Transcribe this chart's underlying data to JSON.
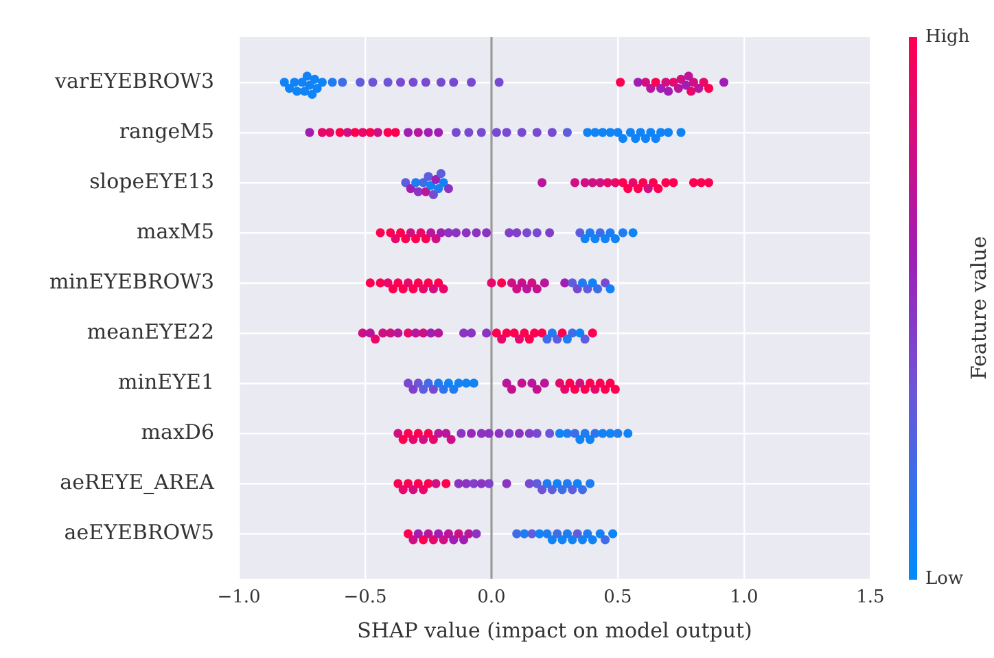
{
  "chart_data": {
    "type": "scatter",
    "orientation": "horizontal",
    "xlabel": "SHAP value (impact on model output)",
    "clabel": "Feature value",
    "categories": [
      "varEYEBROW3",
      "rangeM5",
      "slopeEYE13",
      "maxM5",
      "minEYEBROW3",
      "meanEYE22",
      "minEYE1",
      "maxD6",
      "aeREYE_AREA",
      "aeEYEBROW5"
    ],
    "xlim": [
      -1.0,
      1.5
    ],
    "xticks": [
      {
        "value": -1.0,
        "label": "−1.0"
      },
      {
        "value": -0.5,
        "label": "−0.5"
      },
      {
        "value": 0,
        "label": "0.0"
      },
      {
        "value": 0.5,
        "label": "0.5"
      },
      {
        "value": 1.0,
        "label": "1.0"
      },
      {
        "value": 1.5,
        "label": "1.5"
      }
    ],
    "clim": [
      0,
      1
    ],
    "cticks": [
      {
        "value": 0,
        "label": "Low"
      },
      {
        "value": 1,
        "label": "High"
      }
    ],
    "grid": true,
    "legend": false,
    "marker": "circle",
    "ref_lines": [
      {
        "axis": "x",
        "value": 0,
        "color": "#999999"
      }
    ],
    "series": [
      {
        "x": [
          "varEYEBROW3",
          "varEYEBROW3",
          "varEYEBROW3",
          "varEYEBROW3",
          "varEYEBROW3",
          "varEYEBROW3",
          "varEYEBROW3",
          "varEYEBROW3",
          "varEYEBROW3",
          "varEYEBROW3",
          "varEYEBROW3",
          "varEYEBROW3",
          "varEYEBROW3",
          "varEYEBROW3",
          "varEYEBROW3",
          "varEYEBROW3",
          "varEYEBROW3",
          "varEYEBROW3",
          "varEYEBROW3",
          "varEYEBROW3",
          "varEYEBROW3",
          "varEYEBROW3",
          "varEYEBROW3",
          "varEYEBROW3",
          "varEYEBROW3",
          "varEYEBROW3",
          "varEYEBROW3",
          "varEYEBROW3",
          "varEYEBROW3",
          "varEYEBROW3",
          "varEYEBROW3",
          "varEYEBROW3",
          "varEYEBROW3",
          "varEYEBROW3",
          "varEYEBROW3",
          "varEYEBROW3",
          "varEYEBROW3",
          "varEYEBROW3",
          "varEYEBROW3",
          "varEYEBROW3",
          "varEYEBROW3",
          "varEYEBROW3",
          "varEYEBROW3"
        ],
        "values": [
          -0.82,
          -0.8,
          -0.78,
          -0.77,
          -0.75,
          -0.74,
          -0.73,
          -0.72,
          -0.71,
          -0.7,
          -0.69,
          -0.67,
          -0.63,
          -0.59,
          -0.52,
          -0.47,
          -0.41,
          -0.36,
          -0.31,
          -0.26,
          -0.2,
          -0.15,
          -0.08,
          0.03,
          0.51,
          0.58,
          0.61,
          0.63,
          0.65,
          0.67,
          0.69,
          0.7,
          0.72,
          0.74,
          0.75,
          0.77,
          0.78,
          0.79,
          0.8,
          0.82,
          0.84,
          0.86,
          0.92
        ],
        "colors": [
          "#1083f6",
          "#1083f6",
          "#1083f6",
          "#1083f6",
          "#1083f6",
          "#1083f6",
          "#1083f6",
          "#1083f6",
          "#1083f6",
          "#1083f6",
          "#1083f6",
          "#1083f6",
          "#1f7cf1",
          "#3f6ce7",
          "#5e5ddd",
          "#6e55d8",
          "#6e55d8",
          "#784ad1",
          "#784ad1",
          "#784ad1",
          "#784ad1",
          "#784ad1",
          "#784ad1",
          "#784ad1",
          "#ff0051",
          "#a11db4",
          "#d00f83",
          "#b9169b",
          "#ff0051",
          "#a11db4",
          "#d00f83",
          "#a11db4",
          "#e8076a",
          "#b9169b",
          "#d00f83",
          "#a11db4",
          "#b9169b",
          "#e8076a",
          "#d00f83",
          "#b9169b",
          "#e8076a",
          "#ff0051",
          "#a11db4"
        ]
      },
      {
        "x": [
          "rangeM5",
          "rangeM5",
          "rangeM5",
          "rangeM5",
          "rangeM5",
          "rangeM5",
          "rangeM5",
          "rangeM5",
          "rangeM5",
          "rangeM5",
          "rangeM5",
          "rangeM5",
          "rangeM5",
          "rangeM5",
          "rangeM5",
          "rangeM5",
          "rangeM5",
          "rangeM5",
          "rangeM5",
          "rangeM5",
          "rangeM5",
          "rangeM5",
          "rangeM5",
          "rangeM5",
          "rangeM5",
          "rangeM5",
          "rangeM5",
          "rangeM5",
          "rangeM5",
          "rangeM5",
          "rangeM5",
          "rangeM5",
          "rangeM5",
          "rangeM5",
          "rangeM5",
          "rangeM5",
          "rangeM5",
          "rangeM5",
          "rangeM5"
        ],
        "values": [
          -0.72,
          -0.67,
          -0.64,
          -0.6,
          -0.57,
          -0.54,
          -0.51,
          -0.48,
          -0.45,
          -0.41,
          -0.38,
          -0.33,
          -0.29,
          -0.25,
          -0.21,
          -0.14,
          -0.09,
          -0.04,
          0.02,
          0.06,
          0.12,
          0.18,
          0.24,
          0.3,
          0.38,
          0.41,
          0.44,
          0.47,
          0.5,
          0.52,
          0.55,
          0.57,
          0.59,
          0.61,
          0.63,
          0.65,
          0.67,
          0.7,
          0.75
        ],
        "colors": [
          "#a11db4",
          "#e8076a",
          "#e8076a",
          "#ff0051",
          "#d00f83",
          "#ff0051",
          "#e8076a",
          "#ff0051",
          "#d00f83",
          "#ff0051",
          "#ff0051",
          "#a11db4",
          "#b9169b",
          "#a11db4",
          "#a11db4",
          "#784ad1",
          "#784ad1",
          "#784ad1",
          "#784ad1",
          "#784ad1",
          "#784ad1",
          "#784ad1",
          "#784ad1",
          "#5e5ddd",
          "#1083f6",
          "#1083f6",
          "#1083f6",
          "#1083f6",
          "#1083f6",
          "#1083f6",
          "#1083f6",
          "#1083f6",
          "#1083f6",
          "#1083f6",
          "#1083f6",
          "#1083f6",
          "#1083f6",
          "#1083f6",
          "#1083f6"
        ]
      },
      {
        "x": [
          "slopeEYE13",
          "slopeEYE13",
          "slopeEYE13",
          "slopeEYE13",
          "slopeEYE13",
          "slopeEYE13",
          "slopeEYE13",
          "slopeEYE13",
          "slopeEYE13",
          "slopeEYE13",
          "slopeEYE13",
          "slopeEYE13",
          "slopeEYE13",
          "slopeEYE13",
          "slopeEYE13",
          "slopeEYE13",
          "slopeEYE13",
          "slopeEYE13",
          "slopeEYE13",
          "slopeEYE13",
          "slopeEYE13",
          "slopeEYE13",
          "slopeEYE13",
          "slopeEYE13",
          "slopeEYE13",
          "slopeEYE13",
          "slopeEYE13",
          "slopeEYE13",
          "slopeEYE13",
          "slopeEYE13",
          "slopeEYE13",
          "slopeEYE13",
          "slopeEYE13",
          "slopeEYE13"
        ],
        "values": [
          -0.34,
          -0.32,
          -0.3,
          -0.29,
          -0.27,
          -0.26,
          -0.25,
          -0.24,
          -0.23,
          -0.22,
          -0.21,
          -0.2,
          -0.19,
          -0.17,
          0.2,
          0.33,
          0.37,
          0.4,
          0.43,
          0.46,
          0.49,
          0.52,
          0.54,
          0.56,
          0.58,
          0.6,
          0.62,
          0.64,
          0.66,
          0.69,
          0.72,
          0.8,
          0.83,
          0.86
        ],
        "colors": [
          "#5e5ddd",
          "#a11db4",
          "#1f7cf1",
          "#8d33c2",
          "#3f6ce7",
          "#b9169b",
          "#5e5ddd",
          "#1083f6",
          "#784ad1",
          "#a11db4",
          "#1f7cf1",
          "#5e5ddd",
          "#1083f6",
          "#8d33c2",
          "#b9169b",
          "#d00f83",
          "#d00f83",
          "#d00f83",
          "#d00f83",
          "#e8076a",
          "#e8076a",
          "#ff0051",
          "#ff0051",
          "#e8076a",
          "#ff0051",
          "#ff0051",
          "#d00f83",
          "#ff0051",
          "#ff0051",
          "#ff0051",
          "#ff0051",
          "#ff0051",
          "#ff0051",
          "#ff0051"
        ]
      },
      {
        "x": [
          "maxM5",
          "maxM5",
          "maxM5",
          "maxM5",
          "maxM5",
          "maxM5",
          "maxM5",
          "maxM5",
          "maxM5",
          "maxM5",
          "maxM5",
          "maxM5",
          "maxM5",
          "maxM5",
          "maxM5",
          "maxM5",
          "maxM5",
          "maxM5",
          "maxM5",
          "maxM5",
          "maxM5",
          "maxM5",
          "maxM5",
          "maxM5",
          "maxM5",
          "maxM5",
          "maxM5",
          "maxM5",
          "maxM5",
          "maxM5",
          "maxM5",
          "maxM5"
        ],
        "values": [
          -0.44,
          -0.4,
          -0.38,
          -0.36,
          -0.34,
          -0.32,
          -0.3,
          -0.28,
          -0.26,
          -0.24,
          -0.22,
          -0.2,
          -0.17,
          -0.14,
          -0.1,
          -0.06,
          -0.02,
          0.07,
          0.1,
          0.14,
          0.18,
          0.23,
          0.35,
          0.37,
          0.39,
          0.41,
          0.43,
          0.45,
          0.47,
          0.49,
          0.52,
          0.56
        ],
        "colors": [
          "#ff0051",
          "#ff0051",
          "#e8076a",
          "#ff0051",
          "#ff0051",
          "#d00f83",
          "#ff0051",
          "#e8076a",
          "#ff0051",
          "#b9169b",
          "#d00f83",
          "#a11db4",
          "#8d33c2",
          "#8d33c2",
          "#8d33c2",
          "#8d33c2",
          "#8d33c2",
          "#823fca",
          "#823fca",
          "#784ad1",
          "#784ad1",
          "#823fca",
          "#5e5ddd",
          "#1083f6",
          "#1f7cf1",
          "#1083f6",
          "#3f6ce7",
          "#1083f6",
          "#1f7cf1",
          "#1083f6",
          "#1f7cf1",
          "#1083f6"
        ]
      },
      {
        "x": [
          "minEYEBROW3",
          "minEYEBROW3",
          "minEYEBROW3",
          "minEYEBROW3",
          "minEYEBROW3",
          "minEYEBROW3",
          "minEYEBROW3",
          "minEYEBROW3",
          "minEYEBROW3",
          "minEYEBROW3",
          "minEYEBROW3",
          "minEYEBROW3",
          "minEYEBROW3",
          "minEYEBROW3",
          "minEYEBROW3",
          "minEYEBROW3",
          "minEYEBROW3",
          "minEYEBROW3",
          "minEYEBROW3",
          "minEYEBROW3",
          "minEYEBROW3",
          "minEYEBROW3",
          "minEYEBROW3",
          "minEYEBROW3",
          "minEYEBROW3",
          "minEYEBROW3",
          "minEYEBROW3",
          "minEYEBROW3",
          "minEYEBROW3",
          "minEYEBROW3",
          "minEYEBROW3",
          "minEYEBROW3"
        ],
        "values": [
          -0.48,
          -0.44,
          -0.41,
          -0.39,
          -0.37,
          -0.35,
          -0.33,
          -0.31,
          -0.29,
          -0.27,
          -0.25,
          -0.23,
          -0.21,
          -0.19,
          0.0,
          0.04,
          0.08,
          0.1,
          0.12,
          0.14,
          0.16,
          0.18,
          0.21,
          0.29,
          0.32,
          0.34,
          0.36,
          0.38,
          0.4,
          0.42,
          0.45,
          0.47
        ],
        "colors": [
          "#ff0051",
          "#ff0051",
          "#e8076a",
          "#ff0051",
          "#ff0051",
          "#ff0051",
          "#e8076a",
          "#ff0051",
          "#ff0051",
          "#e8076a",
          "#ff0051",
          "#d00f83",
          "#ff0051",
          "#e8076a",
          "#e8076a",
          "#ff0051",
          "#d00f83",
          "#d00f83",
          "#c4128f",
          "#b9169b",
          "#d00f83",
          "#c4128f",
          "#b9169b",
          "#a11db4",
          "#5e5ddd",
          "#784ad1",
          "#1f7cf1",
          "#5e5ddd",
          "#1083f6",
          "#3f6ce7",
          "#784ad1",
          "#1083f6"
        ]
      },
      {
        "x": [
          "meanEYE22",
          "meanEYE22",
          "meanEYE22",
          "meanEYE22",
          "meanEYE22",
          "meanEYE22",
          "meanEYE22",
          "meanEYE22",
          "meanEYE22",
          "meanEYE22",
          "meanEYE22",
          "meanEYE22",
          "meanEYE22",
          "meanEYE22",
          "meanEYE22",
          "meanEYE22",
          "meanEYE22",
          "meanEYE22",
          "meanEYE22",
          "meanEYE22",
          "meanEYE22",
          "meanEYE22",
          "meanEYE22",
          "meanEYE22",
          "meanEYE22",
          "meanEYE22",
          "meanEYE22",
          "meanEYE22",
          "meanEYE22",
          "meanEYE22",
          "meanEYE22",
          "meanEYE22"
        ],
        "values": [
          -0.51,
          -0.48,
          -0.46,
          -0.43,
          -0.4,
          -0.37,
          -0.33,
          -0.3,
          -0.27,
          -0.24,
          -0.21,
          -0.11,
          -0.08,
          -0.02,
          0.02,
          0.04,
          0.06,
          0.09,
          0.11,
          0.13,
          0.15,
          0.17,
          0.2,
          0.22,
          0.24,
          0.26,
          0.28,
          0.3,
          0.32,
          0.35,
          0.37,
          0.4
        ],
        "colors": [
          "#d00f83",
          "#b9169b",
          "#e8076a",
          "#d00f83",
          "#d00f83",
          "#b9169b",
          "#e8076a",
          "#b9169b",
          "#d00f83",
          "#a11db4",
          "#b9169b",
          "#8d33c2",
          "#8d33c2",
          "#8d33c2",
          "#ff0051",
          "#e8076a",
          "#ff0051",
          "#ff0051",
          "#e8076a",
          "#ff0051",
          "#ff0051",
          "#ff0051",
          "#ff0051",
          "#3f6ce7",
          "#1f7cf1",
          "#5e5ddd",
          "#ff0051",
          "#1f7cf1",
          "#3f6ce7",
          "#1083f6",
          "#5e5ddd",
          "#ff0051"
        ]
      },
      {
        "x": [
          "minEYE1",
          "minEYE1",
          "minEYE1",
          "minEYE1",
          "minEYE1",
          "minEYE1",
          "minEYE1",
          "minEYE1",
          "minEYE1",
          "minEYE1",
          "minEYE1",
          "minEYE1",
          "minEYE1",
          "minEYE1",
          "minEYE1",
          "minEYE1",
          "minEYE1",
          "minEYE1",
          "minEYE1",
          "minEYE1",
          "minEYE1",
          "minEYE1",
          "minEYE1",
          "minEYE1",
          "minEYE1",
          "minEYE1",
          "minEYE1",
          "minEYE1",
          "minEYE1",
          "minEYE1",
          "minEYE1"
        ],
        "values": [
          -0.33,
          -0.31,
          -0.29,
          -0.27,
          -0.25,
          -0.23,
          -0.21,
          -0.19,
          -0.17,
          -0.15,
          -0.13,
          -0.1,
          -0.07,
          0.06,
          0.08,
          0.12,
          0.16,
          0.18,
          0.21,
          0.27,
          0.29,
          0.31,
          0.33,
          0.35,
          0.37,
          0.39,
          0.41,
          0.43,
          0.45,
          0.47,
          0.49
        ],
        "colors": [
          "#784ad1",
          "#823fca",
          "#6e55d8",
          "#5e5ddd",
          "#3f6ce7",
          "#784ad1",
          "#1f7cf1",
          "#2f74ec",
          "#1083f6",
          "#1f7cf1",
          "#1083f6",
          "#1083f6",
          "#1083f6",
          "#b9169b",
          "#c4128f",
          "#c4128f",
          "#b9169b",
          "#c4128f",
          "#b9169b",
          "#e8076a",
          "#e8076a",
          "#ff0051",
          "#ff0051",
          "#d00f83",
          "#ff0051",
          "#ff0051",
          "#e8076a",
          "#ff0051",
          "#ff0051",
          "#ff0051",
          "#ff0051"
        ]
      },
      {
        "x": [
          "maxD6",
          "maxD6",
          "maxD6",
          "maxD6",
          "maxD6",
          "maxD6",
          "maxD6",
          "maxD6",
          "maxD6",
          "maxD6",
          "maxD6",
          "maxD6",
          "maxD6",
          "maxD6",
          "maxD6",
          "maxD6",
          "maxD6",
          "maxD6",
          "maxD6",
          "maxD6",
          "maxD6",
          "maxD6",
          "maxD6",
          "maxD6",
          "maxD6",
          "maxD6",
          "maxD6",
          "maxD6",
          "maxD6",
          "maxD6",
          "maxD6",
          "maxD6"
        ],
        "values": [
          -0.37,
          -0.35,
          -0.33,
          -0.31,
          -0.29,
          -0.27,
          -0.25,
          -0.23,
          -0.21,
          -0.18,
          -0.16,
          -0.12,
          -0.08,
          -0.04,
          -0.01,
          0.03,
          0.07,
          0.11,
          0.15,
          0.18,
          0.23,
          0.27,
          0.3,
          0.33,
          0.35,
          0.37,
          0.39,
          0.41,
          0.44,
          0.47,
          0.5,
          0.54
        ],
        "colors": [
          "#d00f83",
          "#ff0051",
          "#ff0051",
          "#e8076a",
          "#ff0051",
          "#d00f83",
          "#ff0051",
          "#e8076a",
          "#b9169b",
          "#b9169b",
          "#d00f83",
          "#8d33c2",
          "#9728bb",
          "#8d33c2",
          "#8d33c2",
          "#8d33c2",
          "#823fca",
          "#8d33c2",
          "#823fca",
          "#784ad1",
          "#6e55d8",
          "#1083f6",
          "#1f7cf1",
          "#3f6ce7",
          "#1083f6",
          "#1f7cf1",
          "#1083f6",
          "#2f74ec",
          "#1083f6",
          "#1083f6",
          "#1f7cf1",
          "#1083f6"
        ]
      },
      {
        "x": [
          "aeREYE_AREA",
          "aeREYE_AREA",
          "aeREYE_AREA",
          "aeREYE_AREA",
          "aeREYE_AREA",
          "aeREYE_AREA",
          "aeREYE_AREA",
          "aeREYE_AREA",
          "aeREYE_AREA",
          "aeREYE_AREA",
          "aeREYE_AREA",
          "aeREYE_AREA",
          "aeREYE_AREA",
          "aeREYE_AREA",
          "aeREYE_AREA",
          "aeREYE_AREA",
          "aeREYE_AREA",
          "aeREYE_AREA",
          "aeREYE_AREA",
          "aeREYE_AREA",
          "aeREYE_AREA",
          "aeREYE_AREA",
          "aeREYE_AREA",
          "aeREYE_AREA",
          "aeREYE_AREA",
          "aeREYE_AREA",
          "aeREYE_AREA"
        ],
        "values": [
          -0.37,
          -0.35,
          -0.33,
          -0.31,
          -0.29,
          -0.27,
          -0.25,
          -0.22,
          -0.18,
          -0.13,
          -0.1,
          -0.07,
          -0.04,
          -0.01,
          0.06,
          0.15,
          0.18,
          0.2,
          0.22,
          0.24,
          0.26,
          0.28,
          0.3,
          0.32,
          0.34,
          0.36,
          0.39
        ],
        "colors": [
          "#ff0051",
          "#e8076a",
          "#ff0051",
          "#d00f83",
          "#ff0051",
          "#e8076a",
          "#ff0051",
          "#d00f83",
          "#ff0051",
          "#8d33c2",
          "#8d33c2",
          "#823fca",
          "#8d33c2",
          "#823fca",
          "#8d33c2",
          "#784ad1",
          "#5e5ddd",
          "#6e55d8",
          "#1f7cf1",
          "#5e5ddd",
          "#1083f6",
          "#3f6ce7",
          "#1f7cf1",
          "#5e5ddd",
          "#1083f6",
          "#3f6ce7",
          "#1f7cf1"
        ]
      },
      {
        "x": [
          "aeEYEBROW5",
          "aeEYEBROW5",
          "aeEYEBROW5",
          "aeEYEBROW5",
          "aeEYEBROW5",
          "aeEYEBROW5",
          "aeEYEBROW5",
          "aeEYEBROW5",
          "aeEYEBROW5",
          "aeEYEBROW5",
          "aeEYEBROW5",
          "aeEYEBROW5",
          "aeEYEBROW5",
          "aeEYEBROW5",
          "aeEYEBROW5",
          "aeEYEBROW5",
          "aeEYEBROW5",
          "aeEYEBROW5",
          "aeEYEBROW5",
          "aeEYEBROW5",
          "aeEYEBROW5",
          "aeEYEBROW5",
          "aeEYEBROW5",
          "aeEYEBROW5",
          "aeEYEBROW5",
          "aeEYEBROW5",
          "aeEYEBROW5",
          "aeEYEBROW5",
          "aeEYEBROW5",
          "aeEYEBROW5",
          "aeEYEBROW5"
        ],
        "values": [
          -0.33,
          -0.31,
          -0.29,
          -0.27,
          -0.25,
          -0.23,
          -0.21,
          -0.19,
          -0.17,
          -0.15,
          -0.13,
          -0.11,
          -0.09,
          -0.06,
          0.1,
          0.13,
          0.16,
          0.19,
          0.22,
          0.24,
          0.26,
          0.28,
          0.3,
          0.32,
          0.34,
          0.36,
          0.38,
          0.4,
          0.43,
          0.45,
          0.48
        ],
        "colors": [
          "#ff0051",
          "#d00f83",
          "#a11db4",
          "#ff0051",
          "#b9169b",
          "#e8076a",
          "#a11db4",
          "#d00f83",
          "#b9169b",
          "#a11db4",
          "#d00f83",
          "#a11db4",
          "#b9169b",
          "#8d33c2",
          "#3f6ce7",
          "#1f7cf1",
          "#5e5ddd",
          "#1083f6",
          "#1f7cf1",
          "#1083f6",
          "#3f6ce7",
          "#1083f6",
          "#1f7cf1",
          "#1083f6",
          "#5e5ddd",
          "#1083f6",
          "#1f7cf1",
          "#1083f6",
          "#1083f6",
          "#3f6ce7",
          "#1083f6"
        ]
      }
    ]
  }
}
